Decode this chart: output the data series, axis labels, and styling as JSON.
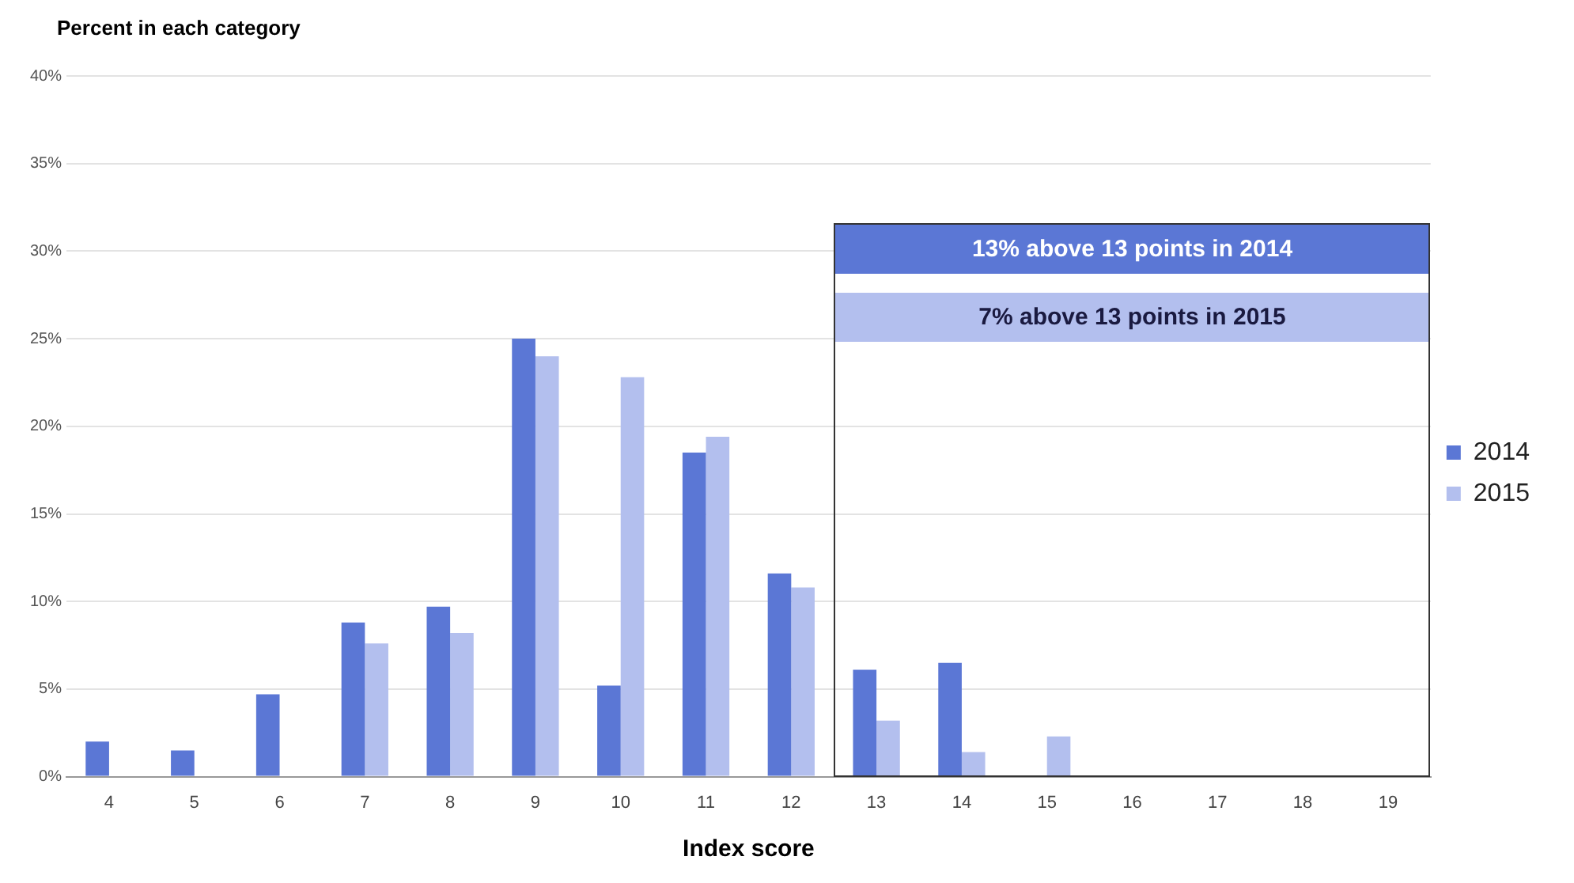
{
  "chart_data": {
    "type": "bar",
    "ylabel": "Percent in each category",
    "xlabel": "Index score",
    "categories": [
      "4",
      "5",
      "6",
      "7",
      "8",
      "9",
      "10",
      "11",
      "12",
      "13",
      "14",
      "15",
      "16",
      "17",
      "18",
      "19"
    ],
    "series": [
      {
        "name": "2014",
        "color": "#5b77d5",
        "values": [
          2.0,
          1.5,
          4.7,
          8.8,
          9.7,
          25,
          5.2,
          18.5,
          11.6,
          6.1,
          6.5,
          0,
          0,
          0,
          0,
          0
        ]
      },
      {
        "name": "2015",
        "color": "#b3bfee",
        "values": [
          0,
          0,
          0,
          7.6,
          8.2,
          24,
          22.8,
          19.4,
          10.8,
          3.2,
          1.4,
          2.3,
          0,
          0,
          0,
          0
        ]
      }
    ],
    "ylim": [
      0,
      40
    ],
    "yticks": [
      {
        "value": 0,
        "label": "0%"
      },
      {
        "value": 5,
        "label": "5%"
      },
      {
        "value": 10,
        "label": "10%"
      },
      {
        "value": 15,
        "label": "15%"
      },
      {
        "value": 20,
        "label": "20%"
      },
      {
        "value": 25,
        "label": "25%"
      },
      {
        "value": 30,
        "label": "30%"
      },
      {
        "value": 35,
        "label": "35%"
      },
      {
        "value": 40,
        "label": "40%"
      }
    ],
    "grid": "y",
    "legend": "right",
    "annotations": [
      "13% above 13 points in 2014",
      "7% above 13 points in 2015"
    ]
  }
}
